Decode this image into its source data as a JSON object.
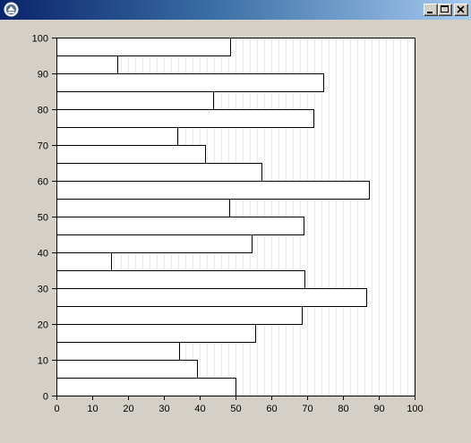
{
  "window": {
    "title": "",
    "buttons": {
      "minimize": "minimize",
      "maximize": "maximize",
      "close": "close"
    }
  },
  "colors": {
    "plot_background": "#ffffff",
    "gridline": "#ececec",
    "bar_fill": "#ffffff",
    "bar_edge": "#000000"
  },
  "chart_data": {
    "type": "bar",
    "orientation": "horizontal",
    "title": "",
    "xlabel": "",
    "ylabel": "",
    "xlim": [
      0,
      100
    ],
    "ylim": [
      0,
      100
    ],
    "xticks": [
      0,
      10,
      20,
      30,
      40,
      50,
      60,
      70,
      80,
      90,
      100
    ],
    "yticks": [
      0,
      10,
      20,
      30,
      40,
      50,
      60,
      70,
      80,
      90,
      100
    ],
    "vertical_grid": true,
    "bars": [
      {
        "y_start": 0,
        "y_end": 5,
        "value": 50.0
      },
      {
        "y_start": 5,
        "y_end": 10,
        "value": 39.3
      },
      {
        "y_start": 10,
        "y_end": 15,
        "value": 34.3
      },
      {
        "y_start": 15,
        "y_end": 20,
        "value": 55.5
      },
      {
        "y_start": 20,
        "y_end": 25,
        "value": 68.5
      },
      {
        "y_start": 25,
        "y_end": 30,
        "value": 86.5
      },
      {
        "y_start": 30,
        "y_end": 35,
        "value": 69.3
      },
      {
        "y_start": 35,
        "y_end": 40,
        "value": 15.3
      },
      {
        "y_start": 40,
        "y_end": 45,
        "value": 54.5
      },
      {
        "y_start": 45,
        "y_end": 50,
        "value": 69.0
      },
      {
        "y_start": 50,
        "y_end": 55,
        "value": 48.3
      },
      {
        "y_start": 55,
        "y_end": 60,
        "value": 87.3
      },
      {
        "y_start": 60,
        "y_end": 65,
        "value": 57.3
      },
      {
        "y_start": 65,
        "y_end": 70,
        "value": 41.5
      },
      {
        "y_start": 70,
        "y_end": 75,
        "value": 33.8
      },
      {
        "y_start": 75,
        "y_end": 80,
        "value": 71.8
      },
      {
        "y_start": 80,
        "y_end": 85,
        "value": 43.8
      },
      {
        "y_start": 85,
        "y_end": 90,
        "value": 74.5
      },
      {
        "y_start": 90,
        "y_end": 95,
        "value": 17.0
      },
      {
        "y_start": 95,
        "y_end": 100,
        "value": 48.5
      }
    ]
  }
}
